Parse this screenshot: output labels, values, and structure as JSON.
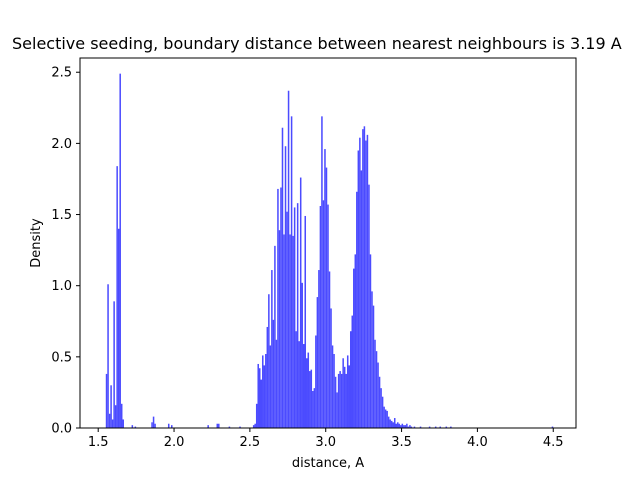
{
  "chart_data": {
    "type": "bar",
    "title": "Selective seeding, boundary distance between nearest neighbours is 3.19 A",
    "xlabel": "distance, A",
    "ylabel": "Density",
    "xlim": [
      1.38,
      4.65
    ],
    "ylim": [
      0,
      2.6
    ],
    "xticks": [
      1.5,
      2.0,
      2.5,
      3.0,
      3.5,
      4.0,
      4.5
    ],
    "xtick_labels": [
      "1.5",
      "2.0",
      "2.5",
      "3.0",
      "3.5",
      "4.0",
      "4.5"
    ],
    "yticks": [
      0.0,
      0.5,
      1.0,
      1.5,
      2.0,
      2.5
    ],
    "ytick_labels": [
      "0.0",
      "0.5",
      "1.0",
      "1.5",
      "2.0",
      "2.5"
    ],
    "bar_color": "#4b4bff",
    "bin_width": 0.01,
    "bins": [
      {
        "x": 1.55,
        "y": 0.38
      },
      {
        "x": 1.56,
        "y": 1.01
      },
      {
        "x": 1.57,
        "y": 0.1
      },
      {
        "x": 1.58,
        "y": 0.3
      },
      {
        "x": 1.59,
        "y": 0.06
      },
      {
        "x": 1.6,
        "y": 0.89
      },
      {
        "x": 1.61,
        "y": 0.16
      },
      {
        "x": 1.62,
        "y": 1.84
      },
      {
        "x": 1.63,
        "y": 1.4
      },
      {
        "x": 1.64,
        "y": 2.49
      },
      {
        "x": 1.65,
        "y": 0.17
      },
      {
        "x": 1.66,
        "y": 0.06
      },
      {
        "x": 1.72,
        "y": 0.02
      },
      {
        "x": 1.74,
        "y": 0.01
      },
      {
        "x": 1.85,
        "y": 0.04
      },
      {
        "x": 1.86,
        "y": 0.08
      },
      {
        "x": 1.87,
        "y": 0.03
      },
      {
        "x": 1.96,
        "y": 0.03
      },
      {
        "x": 1.98,
        "y": 0.02
      },
      {
        "x": 2.22,
        "y": 0.02
      },
      {
        "x": 2.28,
        "y": 0.03
      },
      {
        "x": 2.29,
        "y": 0.03
      },
      {
        "x": 2.36,
        "y": 0.01
      },
      {
        "x": 2.43,
        "y": 0.01
      },
      {
        "x": 2.52,
        "y": 0.02
      },
      {
        "x": 2.53,
        "y": 0.03
      },
      {
        "x": 2.54,
        "y": 0.17
      },
      {
        "x": 2.55,
        "y": 0.45
      },
      {
        "x": 2.56,
        "y": 0.42
      },
      {
        "x": 2.57,
        "y": 0.34
      },
      {
        "x": 2.58,
        "y": 0.51
      },
      {
        "x": 2.59,
        "y": 0.44
      },
      {
        "x": 2.6,
        "y": 0.52
      },
      {
        "x": 2.61,
        "y": 0.71
      },
      {
        "x": 2.62,
        "y": 0.94
      },
      {
        "x": 2.63,
        "y": 0.58
      },
      {
        "x": 2.64,
        "y": 1.11
      },
      {
        "x": 2.65,
        "y": 0.76
      },
      {
        "x": 2.66,
        "y": 1.28
      },
      {
        "x": 2.67,
        "y": 0.62
      },
      {
        "x": 2.68,
        "y": 1.68
      },
      {
        "x": 2.69,
        "y": 1.39
      },
      {
        "x": 2.7,
        "y": 1.69
      },
      {
        "x": 2.71,
        "y": 2.11
      },
      {
        "x": 2.72,
        "y": 1.36
      },
      {
        "x": 2.73,
        "y": 1.98
      },
      {
        "x": 2.74,
        "y": 1.52
      },
      {
        "x": 2.75,
        "y": 2.37
      },
      {
        "x": 2.76,
        "y": 1.36
      },
      {
        "x": 2.77,
        "y": 2.19
      },
      {
        "x": 2.78,
        "y": 1.35
      },
      {
        "x": 2.79,
        "y": 1.55
      },
      {
        "x": 2.8,
        "y": 0.68
      },
      {
        "x": 2.81,
        "y": 1.58
      },
      {
        "x": 2.82,
        "y": 0.61
      },
      {
        "x": 2.83,
        "y": 1.76
      },
      {
        "x": 2.84,
        "y": 1.02
      },
      {
        "x": 2.85,
        "y": 0.59
      },
      {
        "x": 2.86,
        "y": 1.49
      },
      {
        "x": 2.87,
        "y": 0.49
      },
      {
        "x": 2.88,
        "y": 0.53
      },
      {
        "x": 2.89,
        "y": 0.4
      },
      {
        "x": 2.9,
        "y": 0.41
      },
      {
        "x": 2.91,
        "y": 0.26
      },
      {
        "x": 2.92,
        "y": 0.28
      },
      {
        "x": 2.93,
        "y": 0.65
      },
      {
        "x": 2.94,
        "y": 0.92
      },
      {
        "x": 2.95,
        "y": 1.11
      },
      {
        "x": 2.96,
        "y": 1.56
      },
      {
        "x": 2.97,
        "y": 2.19
      },
      {
        "x": 2.98,
        "y": 1.6
      },
      {
        "x": 2.99,
        "y": 1.96
      },
      {
        "x": 3.0,
        "y": 1.83
      },
      {
        "x": 3.01,
        "y": 1.57
      },
      {
        "x": 3.02,
        "y": 1.1
      },
      {
        "x": 3.03,
        "y": 0.84
      },
      {
        "x": 3.04,
        "y": 0.58
      },
      {
        "x": 3.05,
        "y": 0.52
      },
      {
        "x": 3.06,
        "y": 0.36
      },
      {
        "x": 3.07,
        "y": 0.25
      },
      {
        "x": 3.08,
        "y": 0.38
      },
      {
        "x": 3.09,
        "y": 0.4
      },
      {
        "x": 3.1,
        "y": 0.38
      },
      {
        "x": 3.11,
        "y": 0.49
      },
      {
        "x": 3.12,
        "y": 0.43
      },
      {
        "x": 3.13,
        "y": 0.38
      },
      {
        "x": 3.14,
        "y": 0.51
      },
      {
        "x": 3.15,
        "y": 0.44
      },
      {
        "x": 3.16,
        "y": 0.68
      },
      {
        "x": 3.17,
        "y": 0.79
      },
      {
        "x": 3.18,
        "y": 1.12
      },
      {
        "x": 3.19,
        "y": 1.22
      },
      {
        "x": 3.2,
        "y": 1.66
      },
      {
        "x": 3.21,
        "y": 1.95
      },
      {
        "x": 3.22,
        "y": 2.04
      },
      {
        "x": 3.23,
        "y": 1.81
      },
      {
        "x": 3.24,
        "y": 2.1
      },
      {
        "x": 3.25,
        "y": 2.12
      },
      {
        "x": 3.26,
        "y": 2.02
      },
      {
        "x": 3.27,
        "y": 2.06
      },
      {
        "x": 3.28,
        "y": 1.71
      },
      {
        "x": 3.29,
        "y": 1.22
      },
      {
        "x": 3.3,
        "y": 0.96
      },
      {
        "x": 3.31,
        "y": 0.86
      },
      {
        "x": 3.32,
        "y": 0.62
      },
      {
        "x": 3.33,
        "y": 0.54
      },
      {
        "x": 3.34,
        "y": 0.46
      },
      {
        "x": 3.35,
        "y": 0.36
      },
      {
        "x": 3.36,
        "y": 0.28
      },
      {
        "x": 3.37,
        "y": 0.22
      },
      {
        "x": 3.38,
        "y": 0.15
      },
      {
        "x": 3.39,
        "y": 0.13
      },
      {
        "x": 3.4,
        "y": 0.12
      },
      {
        "x": 3.41,
        "y": 0.08
      },
      {
        "x": 3.42,
        "y": 0.06
      },
      {
        "x": 3.43,
        "y": 0.05
      },
      {
        "x": 3.44,
        "y": 0.04
      },
      {
        "x": 3.45,
        "y": 0.07
      },
      {
        "x": 3.46,
        "y": 0.03
      },
      {
        "x": 3.47,
        "y": 0.04
      },
      {
        "x": 3.48,
        "y": 0.03
      },
      {
        "x": 3.49,
        "y": 0.02
      },
      {
        "x": 3.5,
        "y": 0.03
      },
      {
        "x": 3.51,
        "y": 0.02
      },
      {
        "x": 3.52,
        "y": 0.02
      },
      {
        "x": 3.53,
        "y": 0.03
      },
      {
        "x": 3.54,
        "y": 0.01
      },
      {
        "x": 3.55,
        "y": 0.02
      },
      {
        "x": 3.56,
        "y": 0.01
      },
      {
        "x": 3.58,
        "y": 0.01
      },
      {
        "x": 3.62,
        "y": 0.01
      },
      {
        "x": 3.68,
        "y": 0.01
      },
      {
        "x": 3.72,
        "y": 0.01
      },
      {
        "x": 3.75,
        "y": 0.01
      },
      {
        "x": 3.79,
        "y": 0.01
      },
      {
        "x": 3.82,
        "y": 0.01
      },
      {
        "x": 4.49,
        "y": 0.01
      }
    ]
  }
}
